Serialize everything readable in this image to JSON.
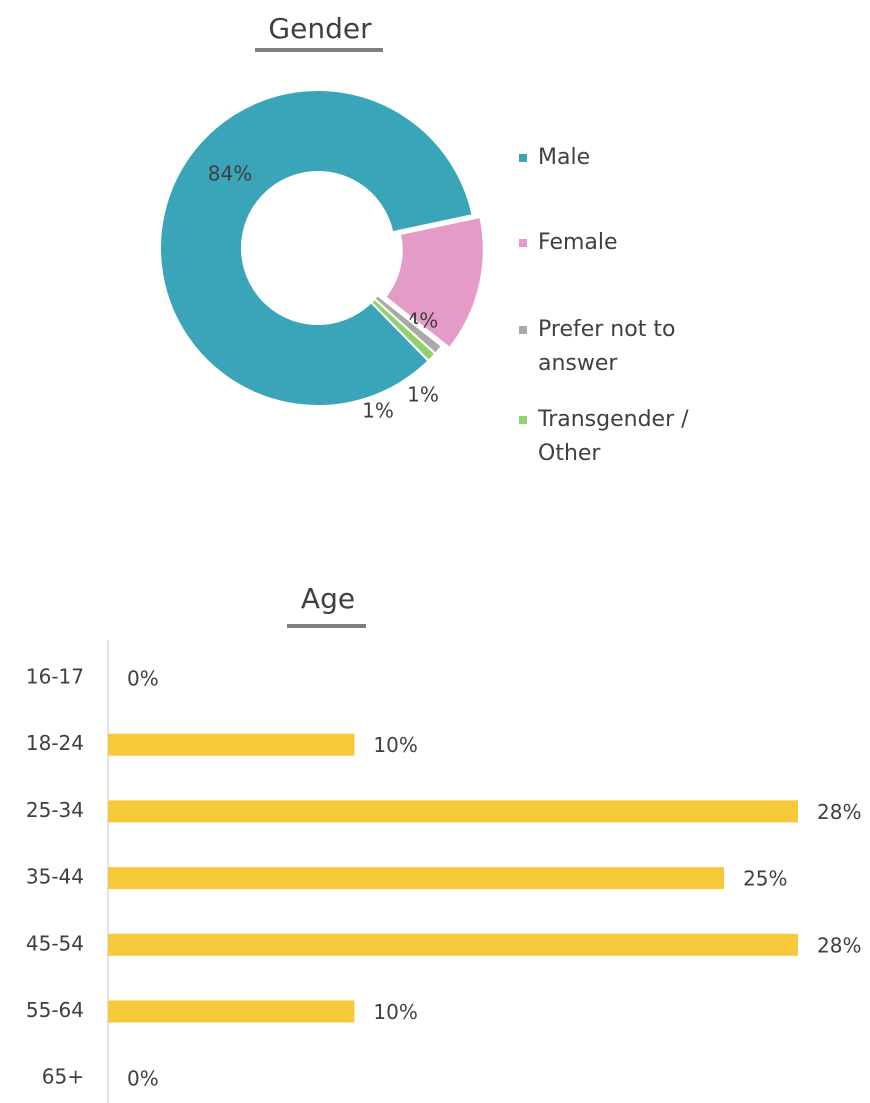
{
  "chart_data": [
    {
      "type": "pie",
      "title": "Gender",
      "categories": [
        "Male",
        "Female",
        "Prefer not to answer",
        "Transgender / Other"
      ],
      "values": [
        84,
        14,
        1,
        1
      ],
      "value_labels": [
        "84%",
        "14%",
        "1%",
        "1%"
      ],
      "colors": [
        "#3aa5b8",
        "#e49bc8",
        "#a9a9a9",
        "#8ed36c"
      ],
      "legend": "right"
    },
    {
      "type": "bar",
      "orientation": "horizontal",
      "title": "Age",
      "categories": [
        "16-17",
        "18-24",
        "25-34",
        "35-44",
        "45-54",
        "55-64",
        "65+"
      ],
      "values": [
        0,
        10,
        28,
        25,
        28,
        10,
        0
      ],
      "value_labels": [
        "0%",
        "10%",
        "28%",
        "25%",
        "28%",
        "10%",
        "0%"
      ],
      "color": "#f6c93b"
    }
  ]
}
